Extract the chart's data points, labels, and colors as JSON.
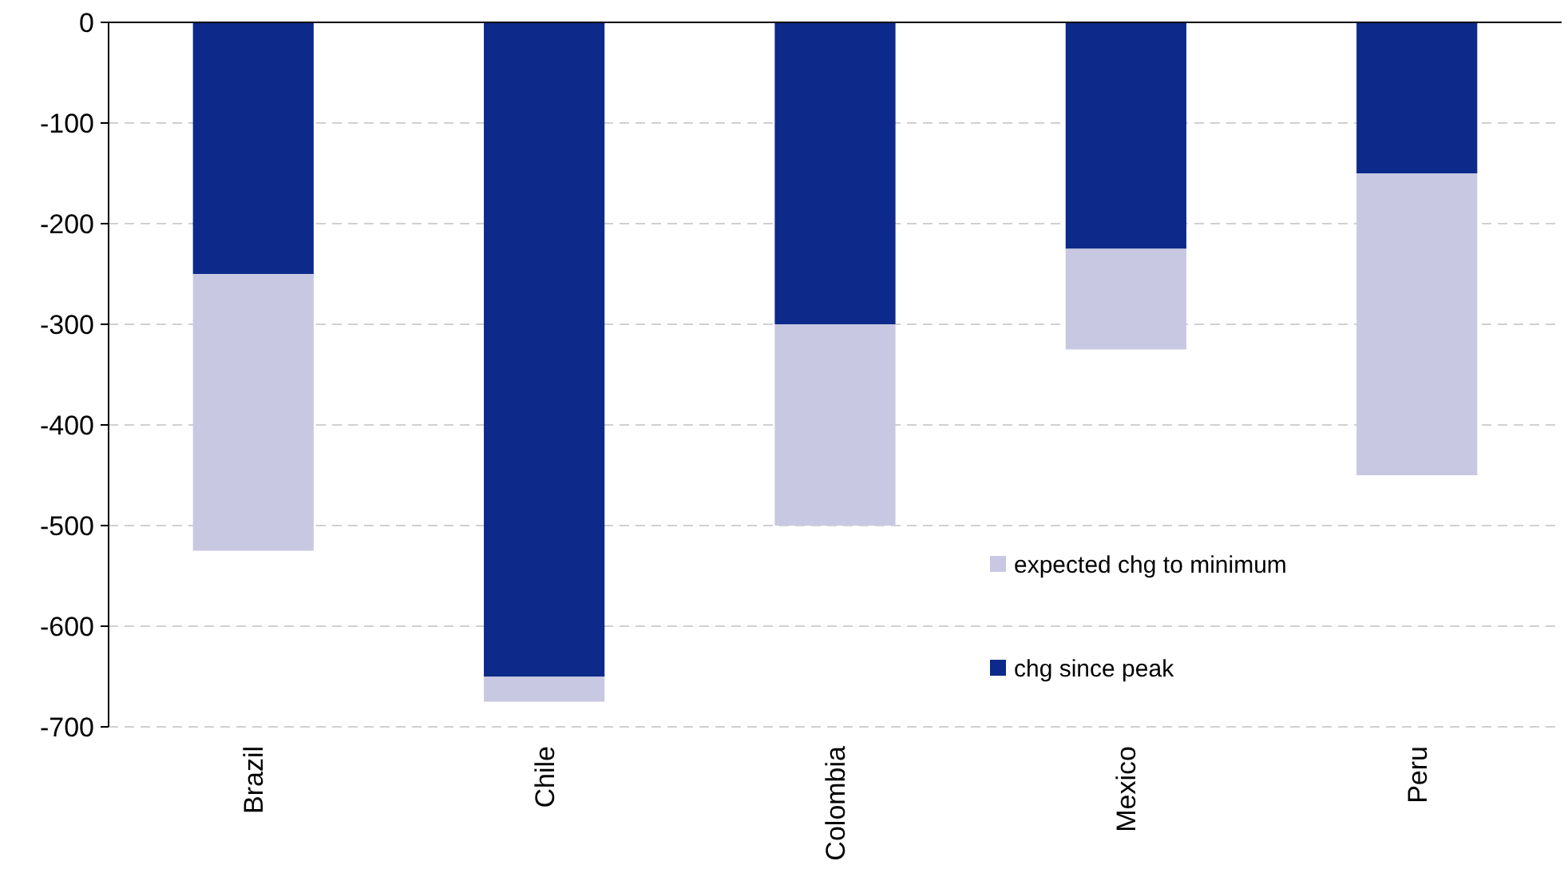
{
  "chart_data": {
    "type": "bar",
    "stacked": true,
    "categories": [
      "Brazil",
      "Chile",
      "Colombia",
      "Mexico",
      "Peru"
    ],
    "series": [
      {
        "name": "chg since peak",
        "color": "#0d2a8a",
        "values": [
          -250,
          -650,
          -300,
          -225,
          -150
        ]
      },
      {
        "name": "expected chg to minimum",
        "color": "#c9c8e2",
        "values": [
          -275,
          -25,
          -200,
          -100,
          -300
        ]
      }
    ],
    "ylim": [
      -700,
      0
    ],
    "yticks": [
      -700,
      -600,
      -500,
      -400,
      -300,
      -200,
      -100,
      0
    ],
    "grid": "y",
    "legend": "bottom right"
  }
}
